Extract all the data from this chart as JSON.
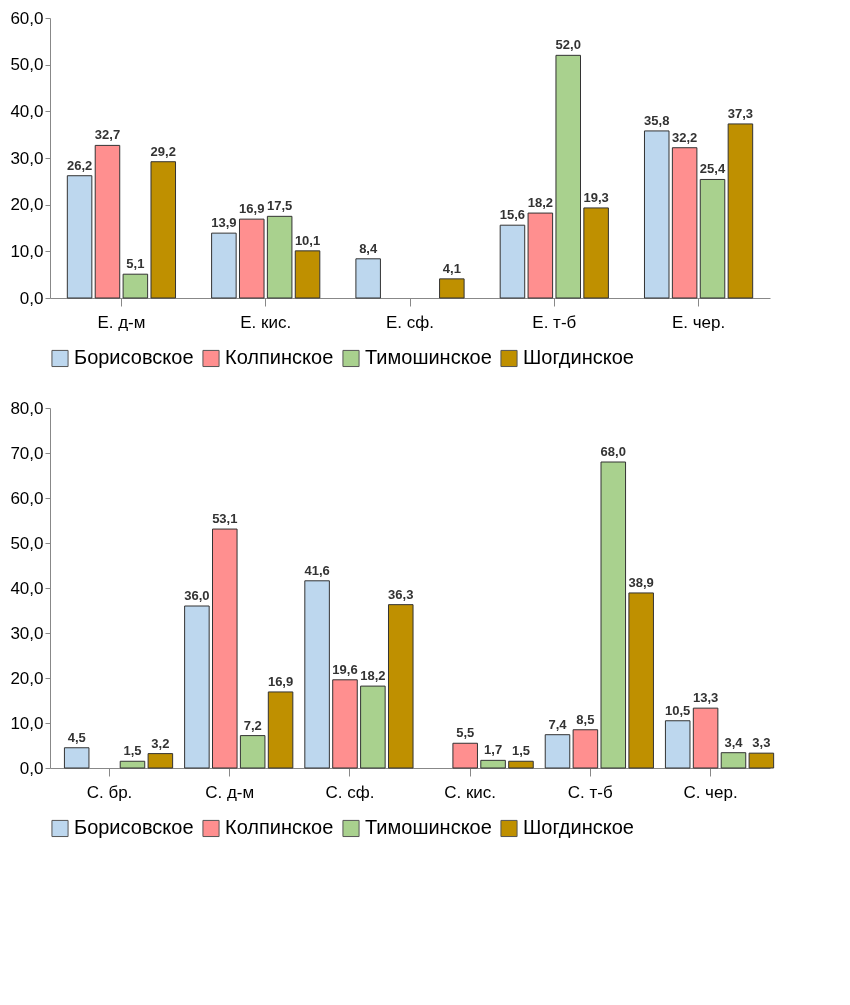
{
  "chart_data": [
    {
      "type": "bar",
      "categories": [
        "Е. д-м",
        "Е. кис.",
        "Е. сф.",
        "Е. т-б",
        "Е. чер."
      ],
      "ylim": [
        0,
        60
      ],
      "yticks": [
        {
          "value": 0,
          "label": "0,0"
        },
        {
          "value": 10,
          "label": "10,0"
        },
        {
          "value": 20,
          "label": "20,0"
        },
        {
          "value": 30,
          "label": "30,0"
        },
        {
          "value": 40,
          "label": "40,0"
        },
        {
          "value": 50,
          "label": "50,0"
        },
        {
          "value": 60,
          "label": "60,0"
        }
      ],
      "grid": false,
      "legend": "bottom",
      "series": [
        {
          "name": "Борисовское",
          "color": "#bdd7ee",
          "values": [
            26.2,
            13.9,
            8.4,
            15.6,
            35.8
          ],
          "value_labels": [
            "26,2",
            "13,9",
            "8,4",
            "15,6",
            "35,8"
          ]
        },
        {
          "name": "Колпинское",
          "color": "#ff8f8f",
          "values": [
            32.7,
            16.9,
            null,
            18.2,
            32.2
          ],
          "value_labels": [
            "32,7",
            "16,9",
            null,
            "18,2",
            "32,2"
          ]
        },
        {
          "name": "Тимошинское",
          "color": "#a9d18e",
          "values": [
            5.1,
            17.5,
            null,
            52.0,
            25.4
          ],
          "value_labels": [
            "5,1",
            "17,5",
            null,
            "52,0",
            "25,4"
          ]
        },
        {
          "name": "Шогдинское",
          "color": "#bf9000",
          "values": [
            29.2,
            10.1,
            4.1,
            19.3,
            37.3
          ],
          "value_labels": [
            "29,2",
            "10,1",
            "4,1",
            "19,3",
            "37,3"
          ]
        }
      ]
    },
    {
      "type": "bar",
      "categories": [
        "С. бр.",
        "С. д-м",
        "С. сф.",
        "С. кис.",
        "С. т-б",
        "С. чер."
      ],
      "ylim": [
        0,
        80
      ],
      "yticks": [
        {
          "value": 0,
          "label": "0,0"
        },
        {
          "value": 10,
          "label": "10,0"
        },
        {
          "value": 20,
          "label": "20,0"
        },
        {
          "value": 30,
          "label": "30,0"
        },
        {
          "value": 40,
          "label": "40,0"
        },
        {
          "value": 50,
          "label": "50,0"
        },
        {
          "value": 60,
          "label": "60,0"
        },
        {
          "value": 70,
          "label": "70,0"
        },
        {
          "value": 80,
          "label": "80,0"
        }
      ],
      "grid": false,
      "legend": "bottom",
      "series": [
        {
          "name": "Борисовское",
          "color": "#bdd7ee",
          "values": [
            4.5,
            36.0,
            41.6,
            null,
            7.4,
            10.5
          ],
          "value_labels": [
            "4,5",
            "36,0",
            "41,6",
            null,
            "7,4",
            "10,5"
          ]
        },
        {
          "name": "Колпинское",
          "color": "#ff8f8f",
          "values": [
            null,
            53.1,
            19.6,
            5.5,
            8.5,
            13.3
          ],
          "value_labels": [
            null,
            "53,1",
            "19,6",
            "5,5",
            "8,5",
            "13,3"
          ]
        },
        {
          "name": "Тимошинское",
          "color": "#a9d18e",
          "values": [
            1.5,
            7.2,
            18.2,
            1.7,
            68.0,
            3.4
          ],
          "value_labels": [
            "1,5",
            "7,2",
            "18,2",
            "1,7",
            "68,0",
            "3,4"
          ]
        },
        {
          "name": "Шогдинское",
          "color": "#bf9000",
          "values": [
            3.2,
            16.9,
            36.3,
            1.5,
            38.9,
            3.3
          ],
          "value_labels": [
            "3,2",
            "16,9",
            "36,3",
            "1,5",
            "38,9",
            "3,3"
          ]
        }
      ]
    }
  ]
}
